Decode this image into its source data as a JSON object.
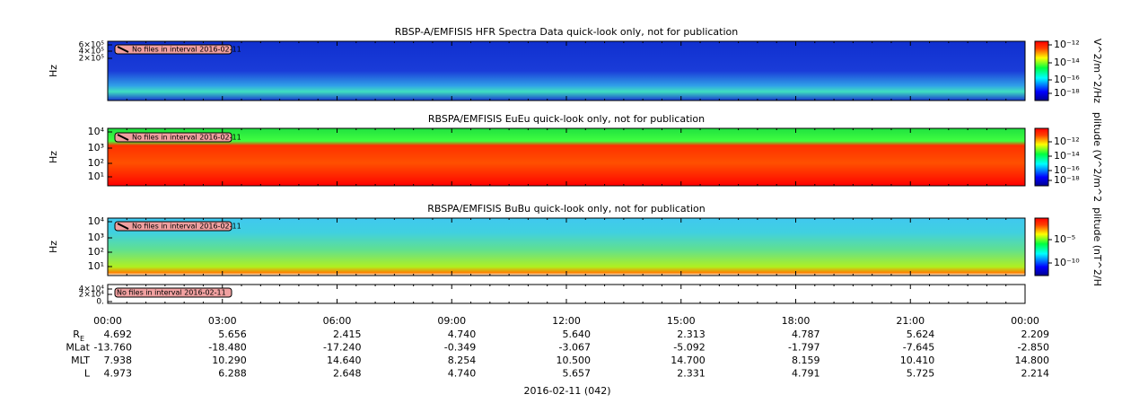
{
  "panels": [
    {
      "title": "RBSP-A/EMFISIS  HFR Spectra Data quick-look only, not for publication",
      "ylabel": "Hz",
      "yticks": [
        "6×10⁵",
        "4×10⁵",
        "2×10⁵"
      ],
      "note": "No files in interval 2016-02-11",
      "colorbar_label": "V^2/m^2/Hz",
      "colorbar_ticks": [
        "10⁻¹²",
        "10⁻¹⁴",
        "10⁻¹⁶",
        "10⁻¹⁸"
      ]
    },
    {
      "title": "RBSPA/EMFISIS  EuEu quick-look only, not for publication",
      "ylabel": "Hz",
      "yticks": [
        "10⁴",
        "10³",
        "10²",
        "10¹"
      ],
      "note": "No files in interval 2016-02-11",
      "colorbar_label": "plitude (V^2/m^2",
      "colorbar_ticks": [
        "10⁻¹²",
        "10⁻¹⁴",
        "10⁻¹⁶",
        "10⁻¹⁸"
      ]
    },
    {
      "title": "RBSPA/EMFISIS  BuBu quick-look only, not for publication",
      "ylabel": "Hz",
      "yticks": [
        "10⁴",
        "10³",
        "10²",
        "10¹"
      ],
      "note": "No files in interval 2016-02-11",
      "colorbar_label": "plitude (nT^2/H",
      "colorbar_ticks": [
        "10⁻⁵",
        "10⁻¹⁰"
      ]
    },
    {
      "yticks": [
        "4×10⁴",
        "2×10⁴",
        "0."
      ],
      "note": "No files in interval 2016-02-11"
    }
  ],
  "ephemeris": {
    "times": [
      "00:00",
      "03:00",
      "06:00",
      "09:00",
      "12:00",
      "15:00",
      "18:00",
      "21:00",
      "00:00"
    ],
    "rows": [
      {
        "label": "R",
        "sub": "E",
        "values": [
          "4.692",
          "5.656",
          "2.415",
          "4.740",
          "5.640",
          "2.313",
          "4.787",
          "5.624",
          "2.209"
        ]
      },
      {
        "label": "MLat",
        "values": [
          "-13.760",
          "-18.480",
          "-17.240",
          "-0.349",
          "-3.067",
          "-5.092",
          "-1.797",
          "-7.645",
          "-2.850"
        ]
      },
      {
        "label": "MLT",
        "values": [
          "7.938",
          "10.290",
          "14.640",
          "8.254",
          "10.500",
          "14.700",
          "8.159",
          "10.410",
          "14.800"
        ]
      },
      {
        "label": "L",
        "values": [
          "4.973",
          "6.288",
          "2.648",
          "4.740",
          "5.657",
          "2.331",
          "4.791",
          "5.725",
          "2.214"
        ]
      }
    ]
  },
  "date": "2016-02-11 (042)"
}
